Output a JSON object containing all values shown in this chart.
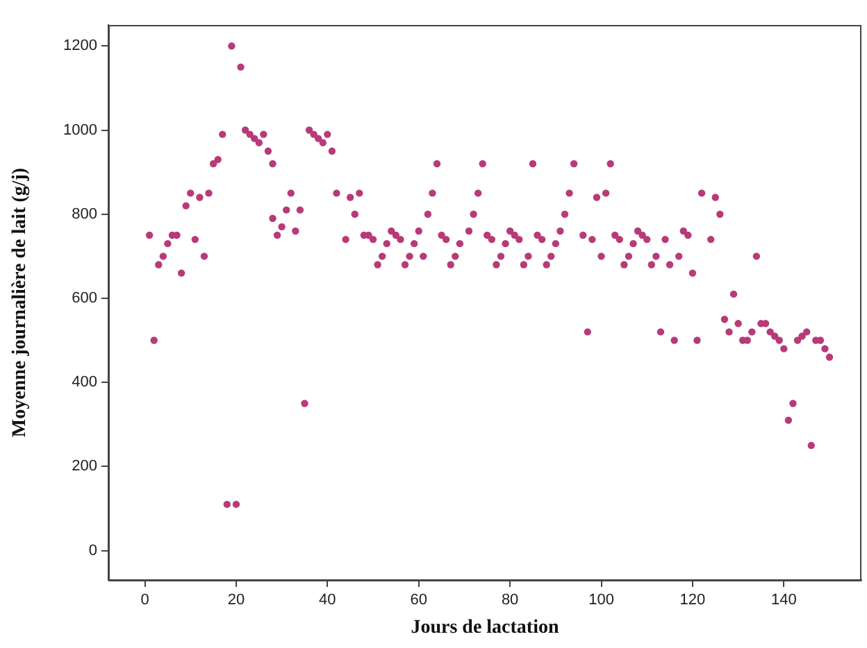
{
  "chart_data": {
    "type": "scatter",
    "xlabel": "Jours de lactation",
    "ylabel": "Moyenne journalière de lait (g/j)",
    "x": [
      1,
      2,
      3,
      4,
      5,
      6,
      7,
      8,
      9,
      10,
      11,
      12,
      13,
      14,
      15,
      16,
      17,
      18,
      19,
      20,
      21,
      22,
      23,
      24,
      25,
      26,
      27,
      28,
      28,
      29,
      30,
      31,
      32,
      33,
      34,
      35,
      36,
      37,
      38,
      39,
      40,
      41,
      42,
      44,
      45,
      46,
      47,
      48,
      49,
      50,
      51,
      52,
      53,
      54,
      55,
      56,
      57,
      58,
      59,
      60,
      61,
      62,
      63,
      64,
      65,
      66,
      67,
      68,
      69,
      71,
      72,
      73,
      74,
      75,
      76,
      77,
      78,
      79,
      80,
      81,
      82,
      83,
      84,
      85,
      86,
      87,
      88,
      89,
      90,
      91,
      92,
      93,
      94,
      96,
      97,
      98,
      99,
      100,
      101,
      102,
      103,
      104,
      105,
      106,
      107,
      108,
      109,
      110,
      111,
      112,
      113,
      114,
      115,
      116,
      117,
      118,
      119,
      120,
      121,
      122,
      124,
      125,
      126,
      127,
      128,
      129,
      130,
      131,
      132,
      133,
      134,
      135,
      136,
      137,
      138,
      139,
      140,
      141,
      142,
      143,
      144,
      145,
      146,
      147,
      148,
      149,
      150
    ],
    "values": [
      750,
      500,
      680,
      700,
      730,
      750,
      750,
      660,
      820,
      850,
      740,
      840,
      700,
      850,
      920,
      930,
      990,
      110,
      1200,
      110,
      1150,
      1000,
      990,
      980,
      970,
      990,
      950,
      920,
      790,
      750,
      770,
      810,
      850,
      760,
      810,
      350,
      1000,
      990,
      980,
      970,
      990,
      950,
      850,
      740,
      840,
      800,
      850,
      750,
      750,
      740,
      680,
      700,
      730,
      760,
      750,
      740,
      680,
      700,
      730,
      760,
      700,
      800,
      850,
      920,
      750,
      740,
      680,
      700,
      730,
      760,
      800,
      850,
      920,
      750,
      740,
      680,
      700,
      730,
      760,
      750,
      740,
      680,
      700,
      920,
      750,
      740,
      680,
      700,
      730,
      760,
      800,
      850,
      920,
      750,
      520,
      740,
      840,
      700,
      850,
      920,
      750,
      740,
      680,
      700,
      730,
      760,
      750,
      740,
      680,
      700,
      520,
      740,
      680,
      500,
      700,
      760,
      750,
      660,
      500,
      850,
      740,
      840,
      800,
      550,
      520,
      610,
      540,
      500,
      500,
      520,
      700,
      540,
      540,
      520,
      510,
      500,
      480,
      310,
      350,
      500,
      510,
      520,
      250,
      500,
      500,
      480,
      460
    ],
    "color": "#b83a78",
    "marker": "circle",
    "legend": false,
    "grid": false,
    "xlim": [
      -8,
      157
    ],
    "xticks": [
      0,
      20,
      40,
      60,
      80,
      100,
      120,
      140
    ],
    "ylim": [
      -70,
      1250
    ],
    "yticks": [
      0,
      200,
      400,
      600,
      800,
      1000,
      1200
    ]
  }
}
